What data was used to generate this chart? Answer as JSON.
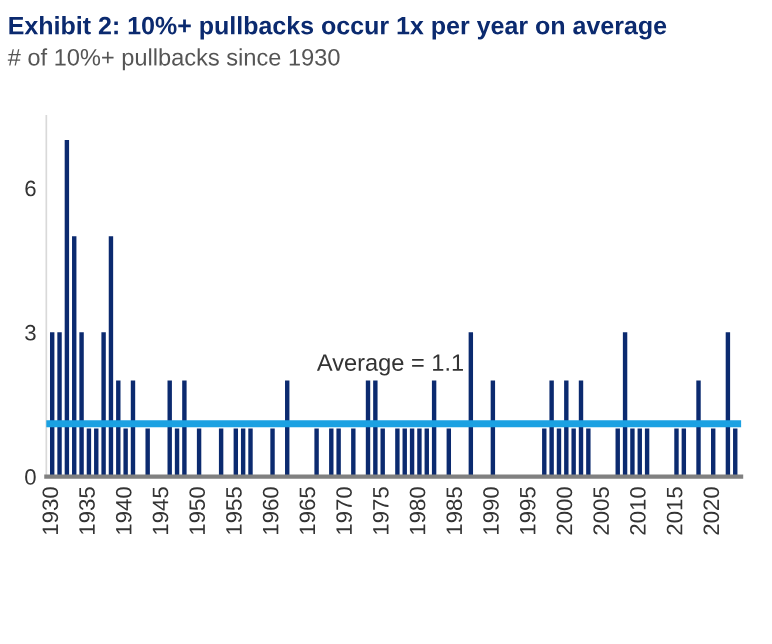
{
  "chart_data": {
    "type": "bar",
    "title": "Exhibit 2: 10%+ pullbacks occur 1x per year on average",
    "subtitle": "# of 10%+ pullbacks since 1930",
    "categories": [
      "1930",
      null,
      null,
      null,
      null,
      "1935",
      null,
      null,
      null,
      null,
      "1940",
      null,
      null,
      null,
      null,
      "1945",
      null,
      null,
      null,
      null,
      "1950",
      null,
      null,
      null,
      null,
      "1955",
      null,
      null,
      null,
      null,
      "1960",
      null,
      null,
      null,
      null,
      "1965",
      null,
      null,
      null,
      null,
      "1970",
      null,
      null,
      null,
      null,
      "1975",
      null,
      null,
      null,
      null,
      "1980",
      null,
      null,
      null,
      null,
      "1985",
      null,
      null,
      null,
      null,
      "1990",
      null,
      null,
      null,
      null,
      "1995",
      null,
      null,
      null,
      null,
      "2000",
      null,
      null,
      null,
      null,
      "2005",
      null,
      null,
      null,
      null,
      "2010",
      null,
      null,
      null,
      null,
      "2015",
      null,
      null,
      null,
      null,
      "2020",
      null,
      null,
      null
    ],
    "values": [
      3,
      3,
      7,
      5,
      3,
      1,
      1,
      3,
      5,
      2,
      1,
      2,
      0,
      1,
      0,
      0,
      2,
      1,
      2,
      0,
      1,
      0,
      0,
      1,
      0,
      1,
      1,
      1,
      0,
      0,
      1,
      0,
      2,
      0,
      0,
      0,
      1,
      0,
      1,
      1,
      0,
      1,
      0,
      2,
      2,
      1,
      0,
      1,
      1,
      1,
      1,
      1,
      2,
      0,
      1,
      0,
      0,
      3,
      0,
      0,
      2,
      0,
      0,
      0,
      0,
      0,
      0,
      1,
      2,
      1,
      2,
      1,
      2,
      1,
      0,
      0,
      0,
      1,
      3,
      1,
      1,
      1,
      0,
      0,
      0,
      1,
      1,
      0,
      2,
      0,
      1,
      0,
      3,
      1
    ],
    "color": "#0b2a6f",
    "ylim": [
      0,
      7.5
    ],
    "yticks": [
      0,
      3,
      6
    ],
    "grid": false,
    "legend": false,
    "ref_lines": [
      {
        "axis": "y",
        "value": 1.1,
        "label": "Average = 1.1",
        "color": "#1ba1e2",
        "line_style": "solid"
      }
    ]
  }
}
